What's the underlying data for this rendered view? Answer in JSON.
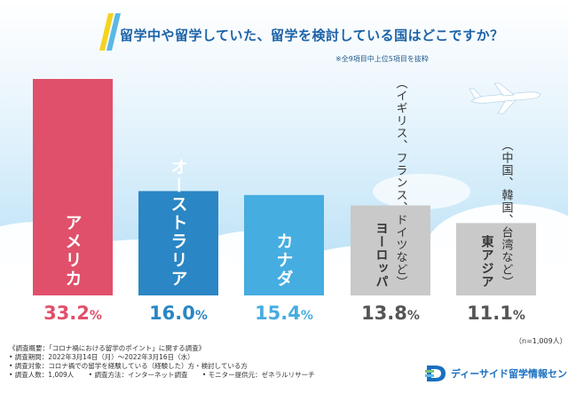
{
  "title": "留学中や留学していた、留学を検討している国はどこですか？",
  "note": "※全9項目中上位5項目を抜粋",
  "sample_size": "（n=1,009人）",
  "colors": {
    "red": "#e0506a",
    "blue_dark": "#2a86c4",
    "blue_light": "#46ade0",
    "gray": "#c9c9c9",
    "title": "#1c63a8",
    "slash_yellow": "#f5d320",
    "slash_blue": "#5ab8e6"
  },
  "chart_data": {
    "type": "bar",
    "title": "留学中や留学していた、留学を検討している国はどこですか？",
    "categories": [
      "アメリカ",
      "オーストラリア",
      "カナダ",
      "ヨーロッパ",
      "東アジア"
    ],
    "category_notes": [
      "",
      "",
      "",
      "（イギリス、フランス、ドイツなど）",
      "（中国、韓国、台湾など）"
    ],
    "values": [
      33.2,
      16.0,
      15.4,
      13.8,
      11.1
    ],
    "value_labels": [
      {
        "main": "33.2",
        "unit": "%"
      },
      {
        "main": "16.0",
        "unit": "%"
      },
      {
        "main": "15.4",
        "unit": "%"
      },
      {
        "main": "13.8",
        "unit": "%"
      },
      {
        "main": "11.1",
        "unit": "%"
      }
    ],
    "bar_colors": [
      "#e0506a",
      "#2a86c4",
      "#46ade0",
      "#c9c9c9",
      "#c9c9c9"
    ],
    "label_colors": [
      "#e0506a",
      "#2a86c4",
      "#46ade0",
      "#555555",
      "#555555"
    ],
    "ylabel": "%",
    "ylim": [
      0,
      33.2
    ]
  },
  "footer": {
    "summary": "《調査概要：「コロナ禍における留学のポイント」に関する調査》",
    "period": "• 調査期間：2022年3月14日（月）～2022年3月16日（水）",
    "target": "• 調査対象：コロナ禍での留学を経験している（経験した）方・検討している方",
    "count": "• 調査人数：1,009人",
    "method": "• 調査方法：インターネット調査",
    "provider": "• モニター提供元：ゼネラルリサーチ"
  },
  "brand": {
    "name": "ディーサイド留学情報センター",
    "logo_icon": "dside-logo-icon"
  }
}
